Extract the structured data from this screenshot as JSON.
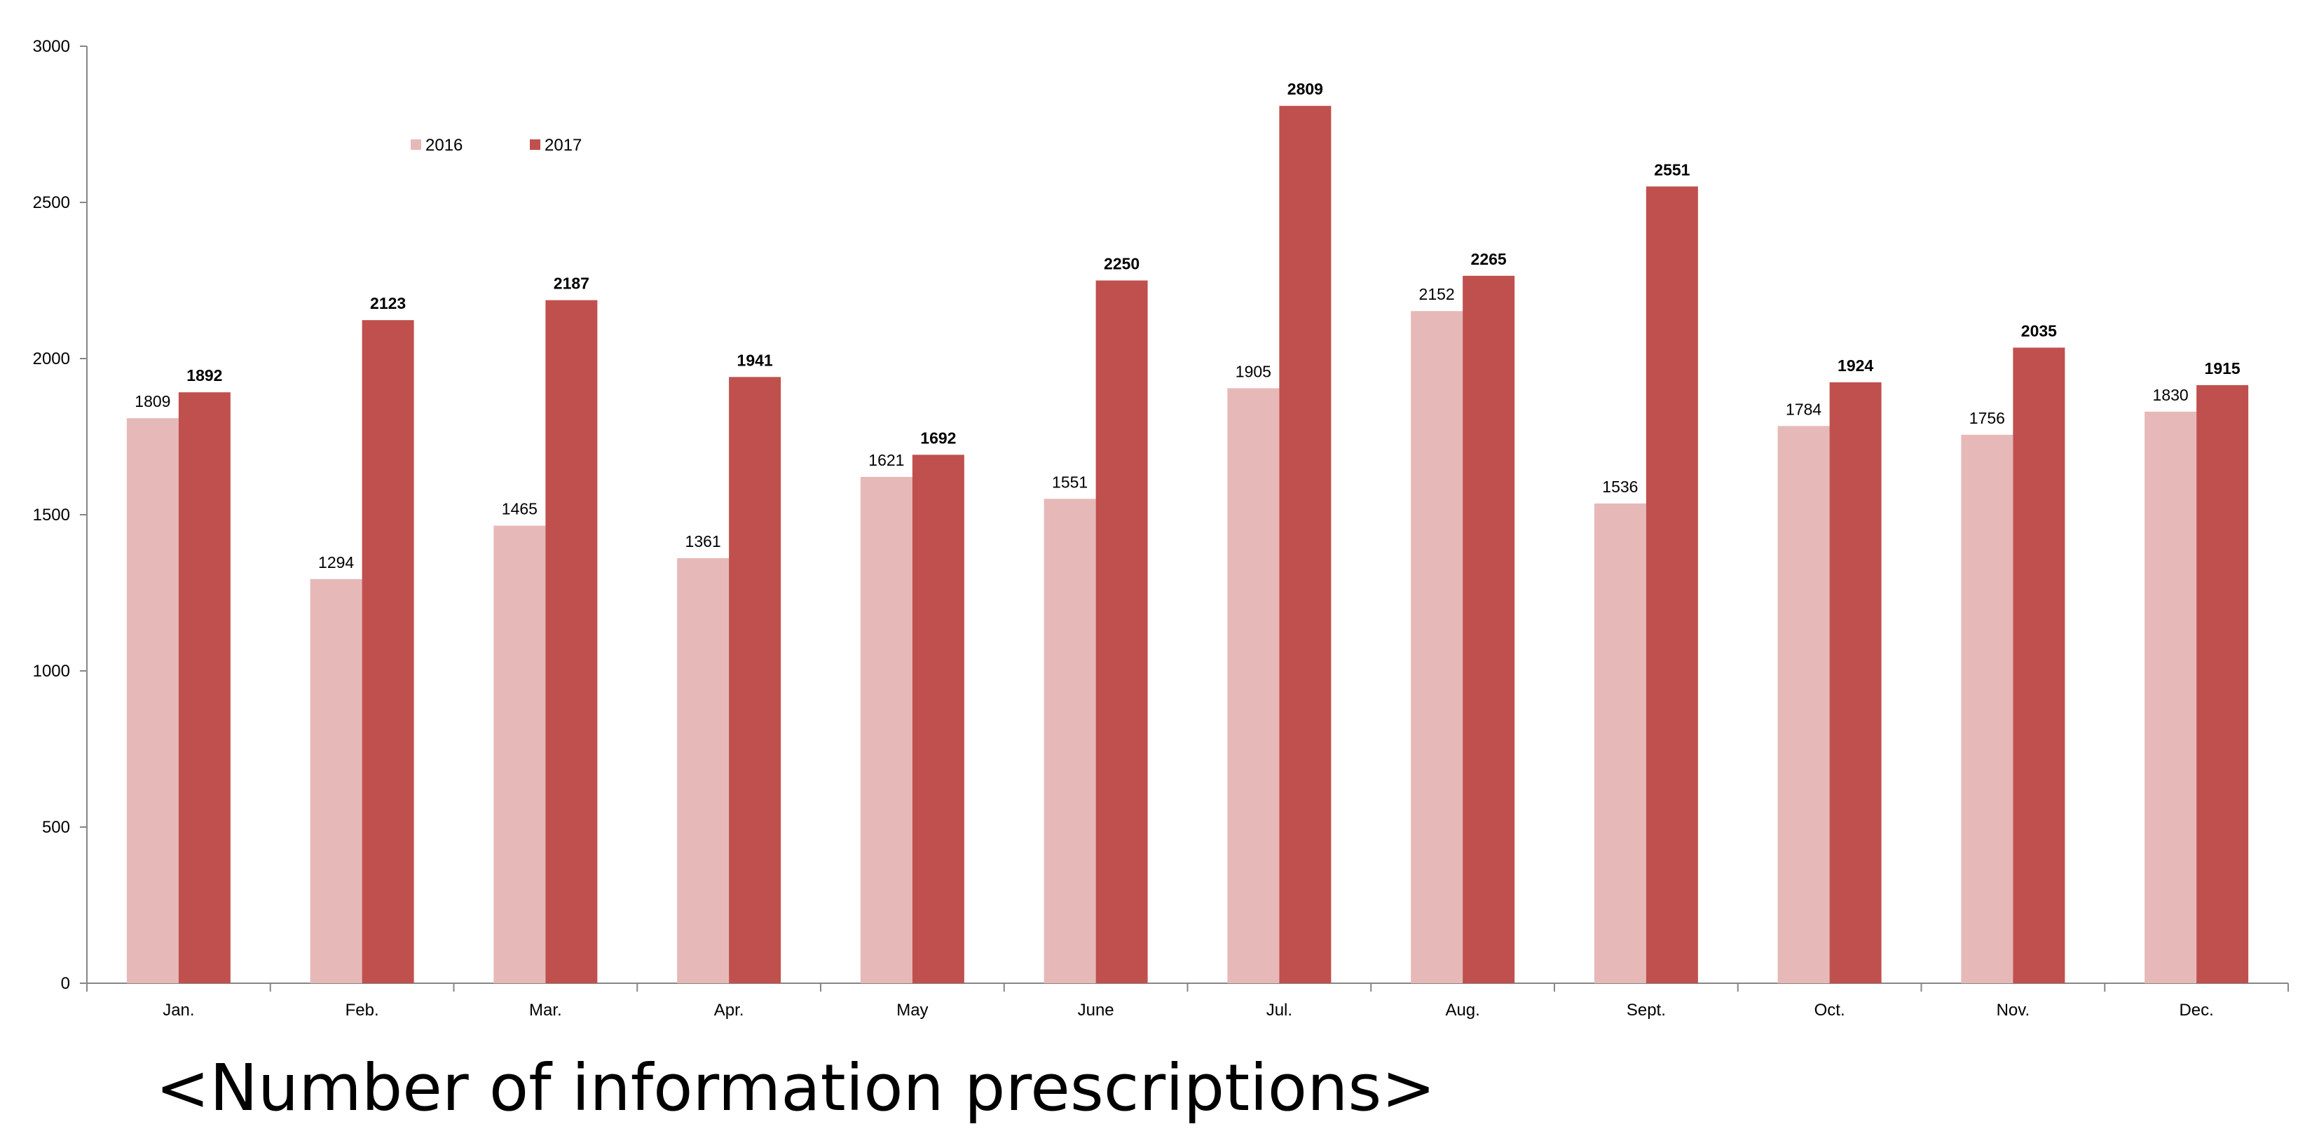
{
  "caption": "<Number of information prescriptions>",
  "colors": {
    "series_2016": "#e6b9b8",
    "series_2017": "#c0504d",
    "axis": "#868686",
    "text": "#000000"
  },
  "chart_data": {
    "type": "bar",
    "categories": [
      "Jan.",
      "Feb.",
      "Mar.",
      "Apr.",
      "May",
      "June",
      "Jul.",
      "Aug.",
      "Sept.",
      "Oct.",
      "Nov.",
      "Dec."
    ],
    "series": [
      {
        "name": "2016",
        "values": [
          1809,
          1294,
          1465,
          1361,
          1621,
          1551,
          1905,
          2152,
          1536,
          1784,
          1756,
          1830
        ],
        "label_weight": "normal"
      },
      {
        "name": "2017",
        "values": [
          1892,
          2123,
          2187,
          1941,
          1692,
          2250,
          2809,
          2265,
          2551,
          1924,
          2035,
          1915
        ],
        "label_weight": "bold"
      }
    ],
    "ylim": [
      0,
      3000
    ],
    "yticks": [
      0,
      500,
      1000,
      1500,
      2000,
      2500,
      3000
    ],
    "grid": false,
    "legend": "top-left",
    "title": "",
    "xlabel": "",
    "ylabel": ""
  }
}
